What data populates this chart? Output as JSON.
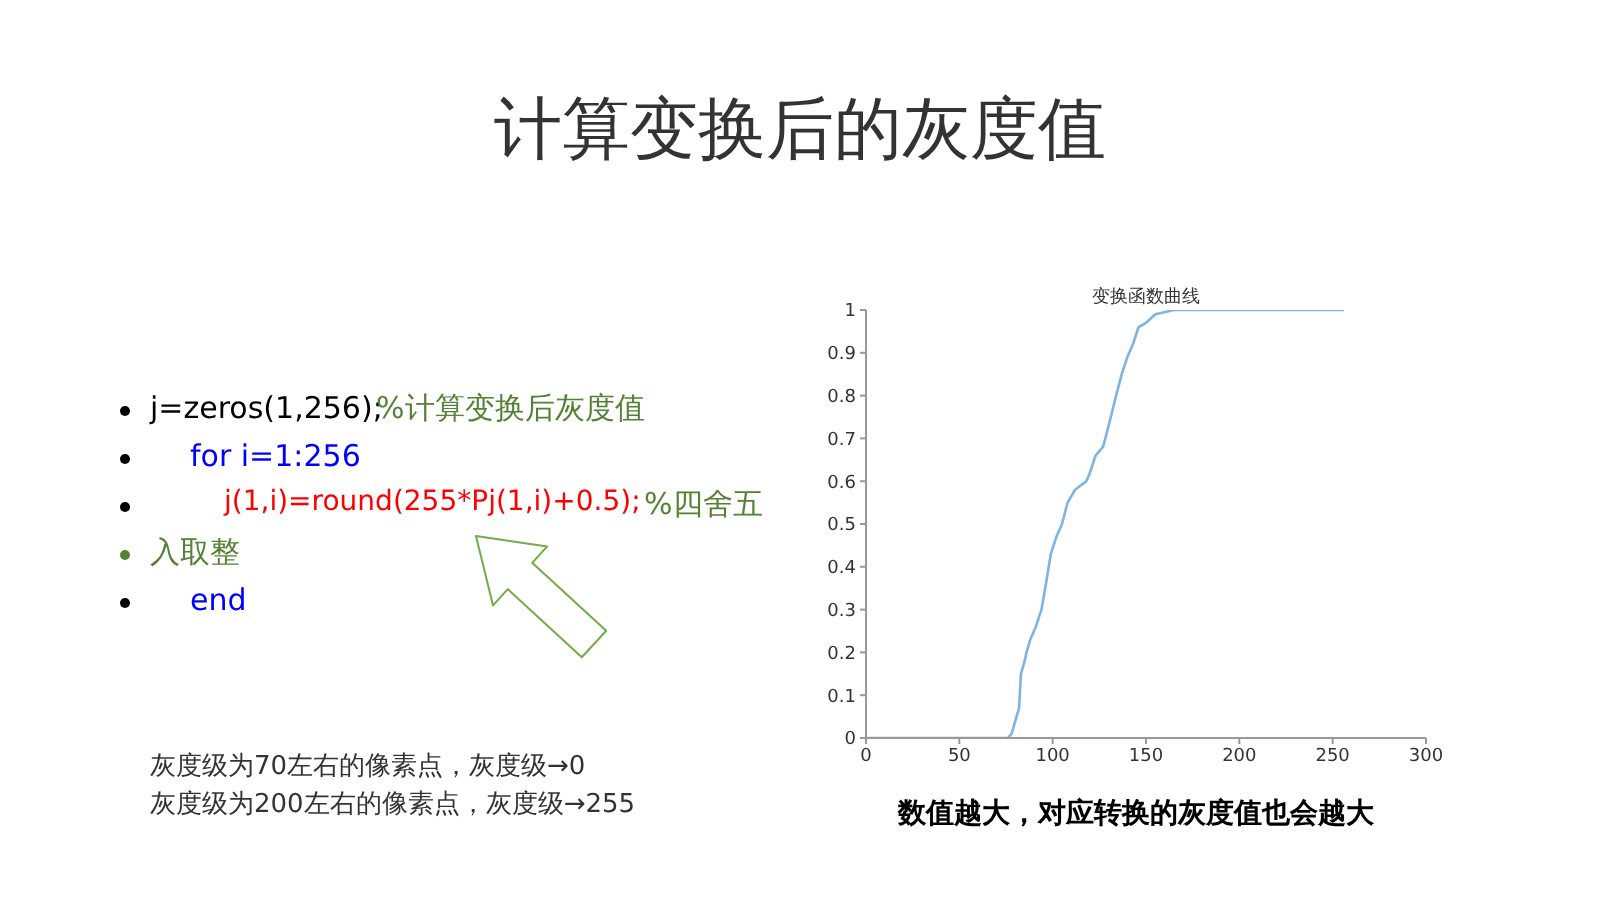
{
  "chart_data": {
    "type": "line",
    "title": "计算变换后的灰度值",
    "subtitle": "变换函数曲线",
    "x": [
      0,
      76,
      78,
      80,
      82,
      83,
      85,
      86,
      88,
      91,
      94,
      96,
      99,
      102,
      105,
      108,
      112,
      118,
      120,
      123,
      127,
      130,
      134,
      137,
      140,
      143,
      146,
      150,
      155,
      165,
      256
    ],
    "series": [
      {
        "color": "#7db4e0",
        "values": [
          0,
          0,
          0.01,
          0.04,
          0.07,
          0.15,
          0.18,
          0.2,
          0.23,
          0.26,
          0.3,
          0.35,
          0.43,
          0.47,
          0.5,
          0.55,
          0.58,
          0.6,
          0.62,
          0.66,
          0.68,
          0.73,
          0.8,
          0.85,
          0.89,
          0.92,
          0.96,
          0.97,
          0.99,
          1,
          1
        ]
      }
    ],
    "xlim": [
      0,
      300
    ],
    "xticks": [
      0,
      50,
      100,
      150,
      200,
      250,
      300
    ],
    "ylim": [
      0,
      1
    ],
    "yticks": [
      0,
      0.1,
      0.2,
      0.3,
      0.4,
      0.5,
      0.6,
      0.7,
      0.8,
      0.9,
      1
    ],
    "grid": false,
    "legend": false,
    "marker": "none",
    "line_style": "solid",
    "annotations": [
      "j=zeros(1,256);",
      "%计算变换后灰度值",
      "for i=1:256",
      "j(1,i)=round(255*Pj(1,i)+0.5);",
      "%四舍五",
      "入取整",
      "end",
      "灰度级为70左右的像素点，灰度级→0",
      "灰度级为200左右的像素点，灰度级→255",
      "数值越大，对应转换的灰度值也会越大"
    ]
  }
}
